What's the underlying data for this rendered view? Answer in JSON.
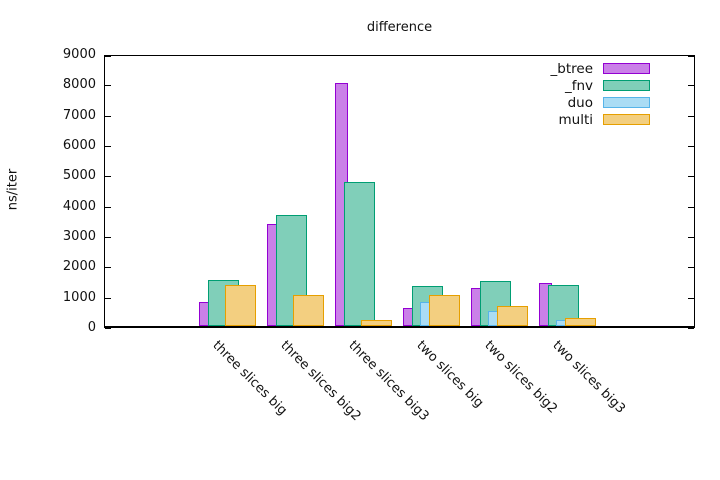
{
  "chart_data": {
    "type": "bar",
    "title": "difference",
    "ylabel": "ns/iter",
    "xlabel": "",
    "ylim": [
      0,
      9000
    ],
    "ytick_step": 1000,
    "yticks": [
      0,
      1000,
      2000,
      3000,
      4000,
      5000,
      6000,
      7000,
      8000,
      9000
    ],
    "grid": false,
    "legend_position": "top-right-inside",
    "categories": [
      "three slices big",
      "three slices big2",
      "three slices big3",
      "two slices big",
      "two slices big2",
      "two slices big3"
    ],
    "series": [
      {
        "name": "_btree",
        "fill": "#ca80e8",
        "border": "#9400d3",
        "values": [
          790,
          3370,
          8000,
          590,
          1250,
          1410
        ]
      },
      {
        "name": "_fnv",
        "fill": "#80cfb9",
        "border": "#009e73",
        "values": [
          1530,
          3660,
          4760,
          1320,
          1480,
          1350
        ]
      },
      {
        "name": "duo",
        "fill": "#aadcf4",
        "border": "#56b4e9",
        "values": [
          null,
          null,
          null,
          780,
          490,
          200
        ]
      },
      {
        "name": "multi",
        "fill": "#f3cf80",
        "border": "#e69f00",
        "values": [
          1360,
          1020,
          200,
          1030,
          650,
          250
        ]
      }
    ]
  }
}
